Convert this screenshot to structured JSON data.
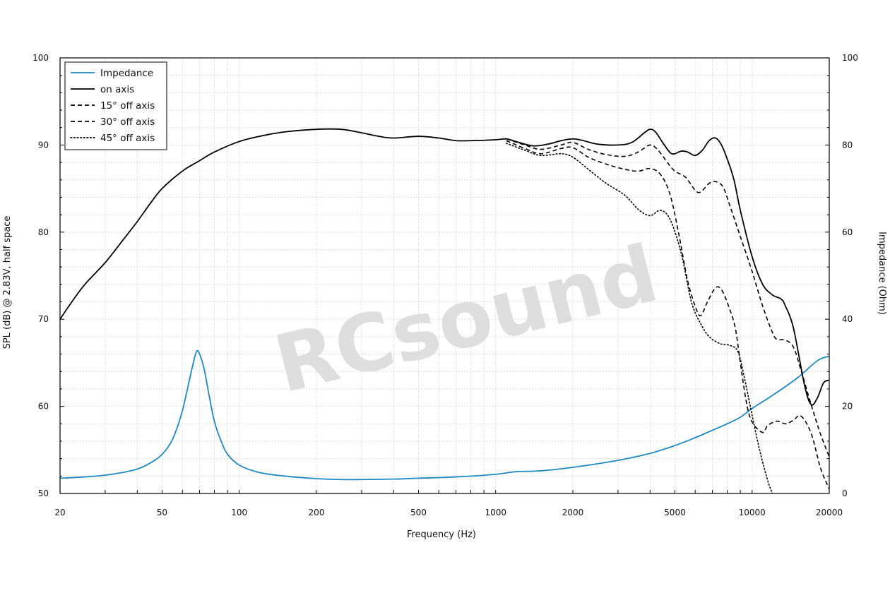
{
  "chart_data": {
    "type": "line",
    "xlabel": "Frequency (Hz)",
    "ylabel": "SPL (dB) @ 2.83V, half space",
    "y2label": "Impedance (Ohm)",
    "xscale": "log",
    "xlim": [
      20,
      20000
    ],
    "ylim": [
      50,
      100
    ],
    "y2lim": [
      0,
      100
    ],
    "x_ticks": [
      20,
      50,
      100,
      200,
      500,
      1000,
      2000,
      5000,
      10000,
      20000
    ],
    "y_ticks": [
      50,
      60,
      70,
      80,
      90,
      100
    ],
    "y2_ticks": [
      0,
      20,
      40,
      60,
      80,
      100
    ],
    "grid": "minor dotted (log decades)",
    "legend": "top-left",
    "watermark": "RCsound",
    "series": [
      {
        "name": "Impedance",
        "axis": "right",
        "color": "#1f88c2",
        "style": "solid",
        "points": [
          [
            20,
            3.5
          ],
          [
            25,
            3.8
          ],
          [
            30,
            4.2
          ],
          [
            35,
            4.8
          ],
          [
            40,
            5.6
          ],
          [
            45,
            7.0
          ],
          [
            50,
            9.0
          ],
          [
            55,
            12.5
          ],
          [
            60,
            19.0
          ],
          [
            65,
            28.0
          ],
          [
            68,
            32.5
          ],
          [
            70,
            32.0
          ],
          [
            73,
            28.5
          ],
          [
            76,
            23.0
          ],
          [
            80,
            16.5
          ],
          [
            85,
            12.0
          ],
          [
            90,
            9.0
          ],
          [
            100,
            6.5
          ],
          [
            120,
            4.8
          ],
          [
            150,
            4.0
          ],
          [
            200,
            3.4
          ],
          [
            250,
            3.2
          ],
          [
            300,
            3.2
          ],
          [
            400,
            3.3
          ],
          [
            500,
            3.5
          ],
          [
            700,
            3.8
          ],
          [
            1000,
            4.4
          ],
          [
            1200,
            5.0
          ],
          [
            1500,
            5.2
          ],
          [
            2000,
            6.0
          ],
          [
            3000,
            7.6
          ],
          [
            4000,
            9.2
          ],
          [
            5000,
            11.0
          ],
          [
            6000,
            12.8
          ],
          [
            7000,
            14.5
          ],
          [
            8000,
            16.0
          ],
          [
            9000,
            17.5
          ],
          [
            10000,
            19.5
          ],
          [
            12000,
            22.5
          ],
          [
            15000,
            26.5
          ],
          [
            18000,
            30.5
          ],
          [
            20000,
            31.5
          ]
        ]
      },
      {
        "name": "on axis",
        "axis": "left",
        "color": "#000000",
        "style": "solid",
        "points": [
          [
            20,
            70.0
          ],
          [
            22,
            71.8
          ],
          [
            25,
            74.0
          ],
          [
            30,
            76.5
          ],
          [
            35,
            79.0
          ],
          [
            40,
            81.2
          ],
          [
            45,
            83.3
          ],
          [
            50,
            85.0
          ],
          [
            60,
            87.0
          ],
          [
            70,
            88.2
          ],
          [
            80,
            89.2
          ],
          [
            100,
            90.4
          ],
          [
            120,
            91.0
          ],
          [
            150,
            91.5
          ],
          [
            200,
            91.8
          ],
          [
            250,
            91.8
          ],
          [
            300,
            91.4
          ],
          [
            350,
            91.0
          ],
          [
            400,
            90.8
          ],
          [
            500,
            91.0
          ],
          [
            600,
            90.8
          ],
          [
            700,
            90.5
          ],
          [
            800,
            90.5
          ],
          [
            1000,
            90.6
          ],
          [
            1100,
            90.7
          ],
          [
            1200,
            90.4
          ],
          [
            1400,
            89.9
          ],
          [
            1600,
            90.1
          ],
          [
            1800,
            90.5
          ],
          [
            2000,
            90.7
          ],
          [
            2200,
            90.5
          ],
          [
            2500,
            90.1
          ],
          [
            3000,
            90.0
          ],
          [
            3400,
            90.3
          ],
          [
            3800,
            91.4
          ],
          [
            4000,
            91.8
          ],
          [
            4200,
            91.5
          ],
          [
            4500,
            90.2
          ],
          [
            4800,
            89.1
          ],
          [
            5000,
            89.0
          ],
          [
            5300,
            89.3
          ],
          [
            5600,
            89.2
          ],
          [
            6000,
            88.8
          ],
          [
            6400,
            89.4
          ],
          [
            6800,
            90.5
          ],
          [
            7200,
            90.8
          ],
          [
            7600,
            90.0
          ],
          [
            8000,
            88.4
          ],
          [
            8500,
            86.0
          ],
          [
            9000,
            82.5
          ],
          [
            10000,
            77.2
          ],
          [
            11000,
            74.0
          ],
          [
            12000,
            72.8
          ],
          [
            13000,
            72.3
          ],
          [
            13500,
            71.5
          ],
          [
            14500,
            69.0
          ],
          [
            16000,
            62.5
          ],
          [
            17000,
            60.2
          ],
          [
            18000,
            61.0
          ],
          [
            19000,
            62.7
          ],
          [
            20000,
            63.0
          ]
        ]
      },
      {
        "name": "15° off axis",
        "axis": "left",
        "color": "#000000",
        "style": "dashed",
        "points": [
          [
            1100,
            90.7
          ],
          [
            1300,
            90.0
          ],
          [
            1500,
            89.5
          ],
          [
            1800,
            90.0
          ],
          [
            2000,
            90.3
          ],
          [
            2300,
            89.5
          ],
          [
            2700,
            88.9
          ],
          [
            3200,
            88.7
          ],
          [
            3600,
            89.2
          ],
          [
            4000,
            90.0
          ],
          [
            4300,
            89.4
          ],
          [
            4700,
            87.9
          ],
          [
            5000,
            87.0
          ],
          [
            5500,
            86.3
          ],
          [
            6000,
            84.8
          ],
          [
            6300,
            84.6
          ],
          [
            6800,
            85.6
          ],
          [
            7200,
            85.8
          ],
          [
            7700,
            85.2
          ],
          [
            8200,
            83.0
          ],
          [
            9000,
            79.5
          ],
          [
            10000,
            75.5
          ],
          [
            11000,
            71.5
          ],
          [
            12000,
            68.5
          ],
          [
            12500,
            67.7
          ],
          [
            13500,
            67.6
          ],
          [
            14500,
            66.8
          ],
          [
            15500,
            64.2
          ],
          [
            17000,
            60.2
          ],
          [
            18500,
            56.8
          ],
          [
            20000,
            54.2
          ]
        ]
      },
      {
        "name": "30° off axis",
        "axis": "left",
        "color": "#000000",
        "style": "dashed",
        "points": [
          [
            1100,
            90.5
          ],
          [
            1300,
            89.6
          ],
          [
            1500,
            89.0
          ],
          [
            1800,
            89.6
          ],
          [
            2000,
            89.7
          ],
          [
            2300,
            88.6
          ],
          [
            2700,
            87.8
          ],
          [
            3200,
            87.2
          ],
          [
            3600,
            87.0
          ],
          [
            4000,
            87.3
          ],
          [
            4400,
            86.6
          ],
          [
            4800,
            84.2
          ],
          [
            5200,
            79.5
          ],
          [
            5600,
            74.5
          ],
          [
            6000,
            71.5
          ],
          [
            6300,
            70.4
          ],
          [
            6700,
            72.0
          ],
          [
            7200,
            73.6
          ],
          [
            7600,
            73.4
          ],
          [
            8100,
            71.5
          ],
          [
            8600,
            69.0
          ],
          [
            9000,
            65.0
          ],
          [
            9500,
            60.5
          ],
          [
            10000,
            58.2
          ],
          [
            11000,
            57.0
          ],
          [
            11500,
            57.8
          ],
          [
            12500,
            58.3
          ],
          [
            13500,
            58.0
          ],
          [
            14500,
            58.4
          ],
          [
            15500,
            58.9
          ],
          [
            17000,
            56.9
          ],
          [
            18500,
            52.9
          ],
          [
            20000,
            50.5
          ]
        ]
      },
      {
        "name": "45° off axis",
        "axis": "left",
        "color": "#000000",
        "style": "dotted",
        "points": [
          [
            1100,
            90.2
          ],
          [
            1300,
            89.4
          ],
          [
            1500,
            88.8
          ],
          [
            1800,
            89.0
          ],
          [
            2000,
            88.6
          ],
          [
            2300,
            87.2
          ],
          [
            2700,
            85.6
          ],
          [
            3200,
            84.2
          ],
          [
            3600,
            82.6
          ],
          [
            4000,
            81.9
          ],
          [
            4400,
            82.5
          ],
          [
            4800,
            81.4
          ],
          [
            5300,
            77.5
          ],
          [
            5800,
            72.0
          ],
          [
            6300,
            69.5
          ],
          [
            6800,
            68.0
          ],
          [
            7500,
            67.2
          ],
          [
            8200,
            67.0
          ],
          [
            8800,
            66.3
          ],
          [
            9300,
            63.5
          ],
          [
            10000,
            59.0
          ],
          [
            10700,
            55.0
          ],
          [
            11500,
            51.5
          ],
          [
            12000,
            50.0
          ]
        ]
      }
    ]
  }
}
